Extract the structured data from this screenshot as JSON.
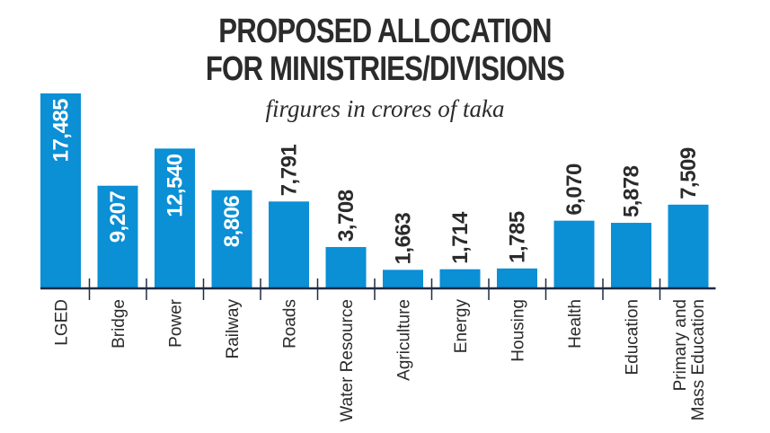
{
  "chart_data": {
    "type": "bar",
    "title": "PROPOSED ALLOCATION FOR MINISTRIES/DIVISIONS",
    "title_lines": [
      "PROPOSED ALLOCATION",
      "FOR MINISTRIES/DIVISIONS"
    ],
    "subtitle": "firgures in crores of taka",
    "categories": [
      "LGED",
      "Bridge",
      "Power",
      "Railway",
      "Roads",
      "Water Resource",
      "Agriculture",
      "Energy",
      "Housing",
      "Health",
      "Education",
      "Primary and Mass Education"
    ],
    "category_lines": [
      [
        "LGED"
      ],
      [
        "Bridge"
      ],
      [
        "Power"
      ],
      [
        "Railway"
      ],
      [
        "Roads"
      ],
      [
        "Water Resource"
      ],
      [
        "Agriculture"
      ],
      [
        "Energy"
      ],
      [
        "Housing"
      ],
      [
        "Health"
      ],
      [
        "Education"
      ],
      [
        "Primary and",
        "Mass Education"
      ]
    ],
    "values": [
      17485,
      9207,
      12540,
      8806,
      7791,
      3708,
      1663,
      1714,
      1785,
      6070,
      5878,
      7509
    ],
    "value_labels": [
      "17,485",
      "9,207",
      "12,540",
      "8,806",
      "7,791",
      "3,708",
      "1,663",
      "1,714",
      "1,785",
      "6,070",
      "5,878",
      "7,509"
    ],
    "ylim": [
      0,
      17485
    ],
    "grid": false,
    "colors": {
      "bar": "#0b8fd5",
      "axis": "#1f2a44",
      "text": "#2b2b2b"
    }
  }
}
